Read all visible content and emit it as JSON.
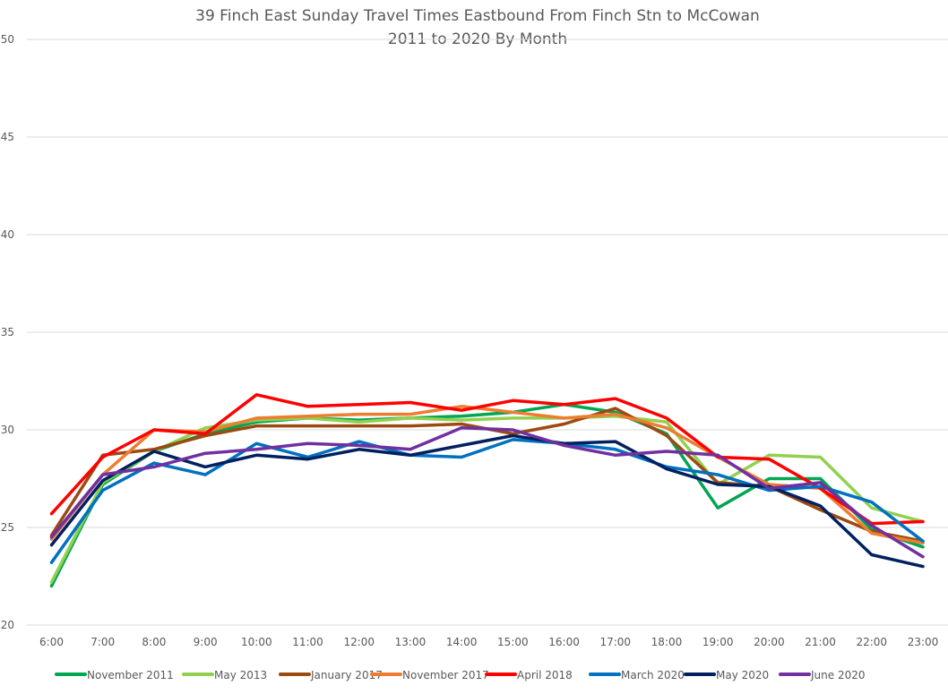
{
  "chart_data": {
    "type": "line",
    "title": "39 Finch East Sunday Travel Times Eastbound From Finch Stn to McCowan",
    "subtitle": "2011 to 2020 By Month",
    "xlabel": "",
    "ylabel": "",
    "ylim": [
      20,
      50
    ],
    "yticks": [
      "20",
      "25",
      "30",
      "35",
      "40",
      "45",
      "50"
    ],
    "ytick_values": [
      20,
      25,
      30,
      35,
      40,
      45,
      50
    ],
    "grid": true,
    "legend_position": "bottom",
    "categories": [
      "6:00",
      "7:00",
      "8:00",
      "9:00",
      "10:00",
      "11:00",
      "12:00",
      "13:00",
      "14:00",
      "15:00",
      "16:00",
      "17:00",
      "18:00",
      "19:00",
      "20:00",
      "21:00",
      "22:00",
      "23:00"
    ],
    "series": [
      {
        "name": "November 2011",
        "color": "#00a651",
        "values": [
          22.0,
          27.2,
          28.9,
          29.8,
          30.4,
          30.6,
          30.5,
          30.6,
          30.7,
          30.9,
          31.3,
          30.9,
          29.8,
          26.0,
          27.5,
          27.5,
          24.9,
          24.0
        ]
      },
      {
        "name": "May 2013",
        "color": "#92d050",
        "values": [
          22.2,
          27.3,
          28.9,
          30.1,
          30.5,
          30.6,
          30.4,
          30.6,
          30.5,
          30.6,
          30.6,
          30.7,
          30.4,
          27.2,
          28.7,
          28.6,
          26.0,
          25.3
        ]
      },
      {
        "name": "January 2017",
        "color": "#9c4a12",
        "values": [
          24.6,
          28.7,
          29.0,
          29.7,
          30.2,
          30.2,
          30.2,
          30.2,
          30.3,
          29.8,
          30.3,
          31.1,
          29.7,
          27.3,
          27.1,
          25.9,
          24.8,
          24.3
        ]
      },
      {
        "name": "November 2017",
        "color": "#ed7d31",
        "values": [
          24.4,
          27.7,
          30.0,
          29.9,
          30.6,
          30.7,
          30.8,
          30.8,
          31.2,
          30.9,
          30.6,
          30.8,
          30.1,
          28.6,
          27.2,
          27.0,
          24.7,
          24.2
        ]
      },
      {
        "name": "April 2018",
        "color": "#ff0000",
        "values": [
          25.7,
          28.6,
          30.0,
          29.8,
          31.8,
          31.2,
          31.3,
          31.4,
          31.0,
          31.5,
          31.3,
          31.6,
          30.6,
          28.6,
          28.5,
          27.0,
          25.2,
          25.3
        ]
      },
      {
        "name": "March 2020",
        "color": "#0070c0",
        "values": [
          23.2,
          26.9,
          28.3,
          27.7,
          29.3,
          28.6,
          29.4,
          28.7,
          28.6,
          29.5,
          29.3,
          29.0,
          28.1,
          27.7,
          26.9,
          27.1,
          26.3,
          24.3
        ]
      },
      {
        "name": "May 2020",
        "color": "#002060",
        "values": [
          24.1,
          27.4,
          28.9,
          28.1,
          28.7,
          28.5,
          29.0,
          28.7,
          29.2,
          29.7,
          29.3,
          29.4,
          28.0,
          27.2,
          27.1,
          26.1,
          23.6,
          23.0
        ]
      },
      {
        "name": "June 2020",
        "color": "#7030a0",
        "values": [
          24.5,
          27.7,
          28.1,
          28.8,
          29.0,
          29.3,
          29.2,
          29.0,
          30.1,
          30.0,
          29.2,
          28.7,
          28.9,
          28.7,
          27.0,
          27.3,
          25.1,
          23.5
        ]
      }
    ]
  }
}
